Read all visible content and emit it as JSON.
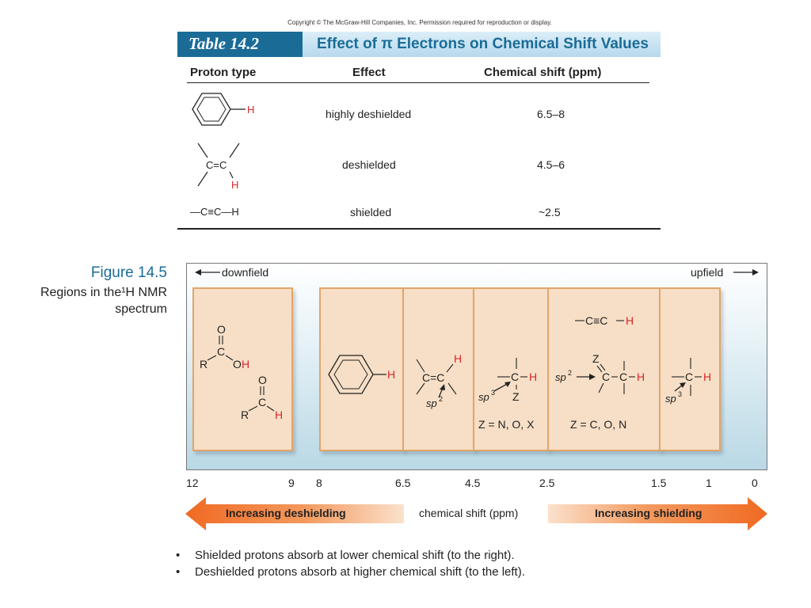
{
  "copyright": "Copyright © The McGraw-Hill Companies, Inc. Permission required for reproduction or display.",
  "table": {
    "number": "Table 14.2",
    "title": "Effect of π Electrons on Chemical Shift Values",
    "headers": [
      "Proton type",
      "Effect",
      "Chemical shift (ppm)"
    ],
    "rows": [
      {
        "effect": "highly deshielded",
        "shift": "6.5–8"
      },
      {
        "effect": "deshielded",
        "shift": "4.5–6"
      },
      {
        "proton_type": "—C≡C—H",
        "effect": "shielded",
        "shift": "~2.5"
      }
    ]
  },
  "figure": {
    "label": "Figure 14.5",
    "caption_lines": [
      "Regions in the¹H NMR",
      "spectrum"
    ],
    "downfield": "downfield",
    "upfield": "upfield",
    "z_labels": [
      "Z = N, O, X",
      "Z = C, O, N"
    ],
    "axis_ticks": [
      "12",
      "9",
      "8",
      "6.5",
      "4.5",
      "2.5",
      "1.5",
      "1",
      "0"
    ],
    "axis_label": "chemical shift (ppm)",
    "left_arrow": "Increasing deshielding",
    "right_arrow": "Increasing shielding"
  },
  "bullets": [
    "Shielded protons absorb at lower chemical shift (to the right).",
    "Deshielded protons absorb at higher chemical shift (to the left)."
  ],
  "colors": {
    "accent_blue": "#1a6c97",
    "hydrogen_red": "#d9262b",
    "box_fill": "#f6dfc6",
    "box_border": "#e2a56a",
    "arrow_orange": "#f07a32"
  }
}
